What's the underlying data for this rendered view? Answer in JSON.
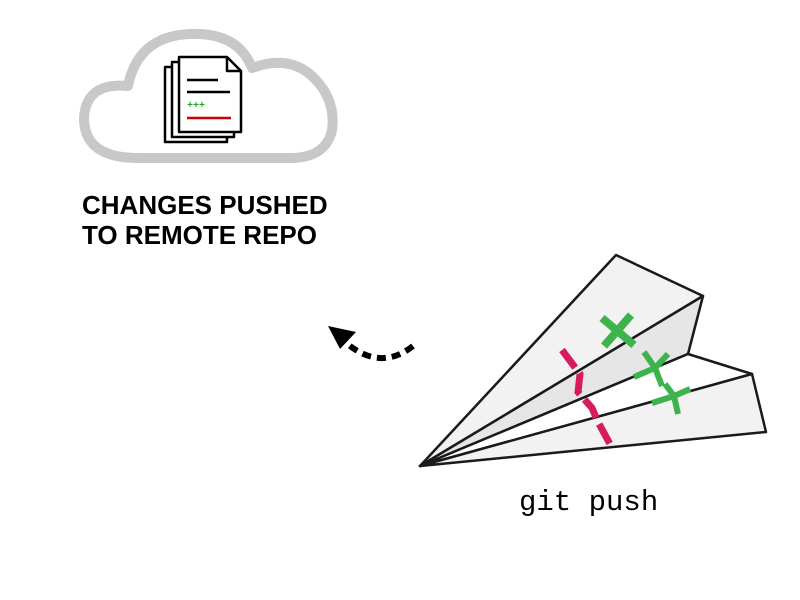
{
  "heading": {
    "line1": "CHANGES PUSHED",
    "line2": "TO REMOTE REPO"
  },
  "command": "git push",
  "document": {
    "diff_marker": "+++"
  },
  "icons": {
    "cloud": "cloud-icon",
    "documents": "document-stack-icon",
    "arrow": "dashed-curved-arrow-icon",
    "plane": "paper-airplane-icon"
  },
  "colors": {
    "cloud_outline": "#c8c8c8",
    "added": "#3cb44b",
    "removed": "#d81b60",
    "removed_line": "#cc0000",
    "plane_fill": "#f2f2f2",
    "ink": "#1a1a1a"
  }
}
